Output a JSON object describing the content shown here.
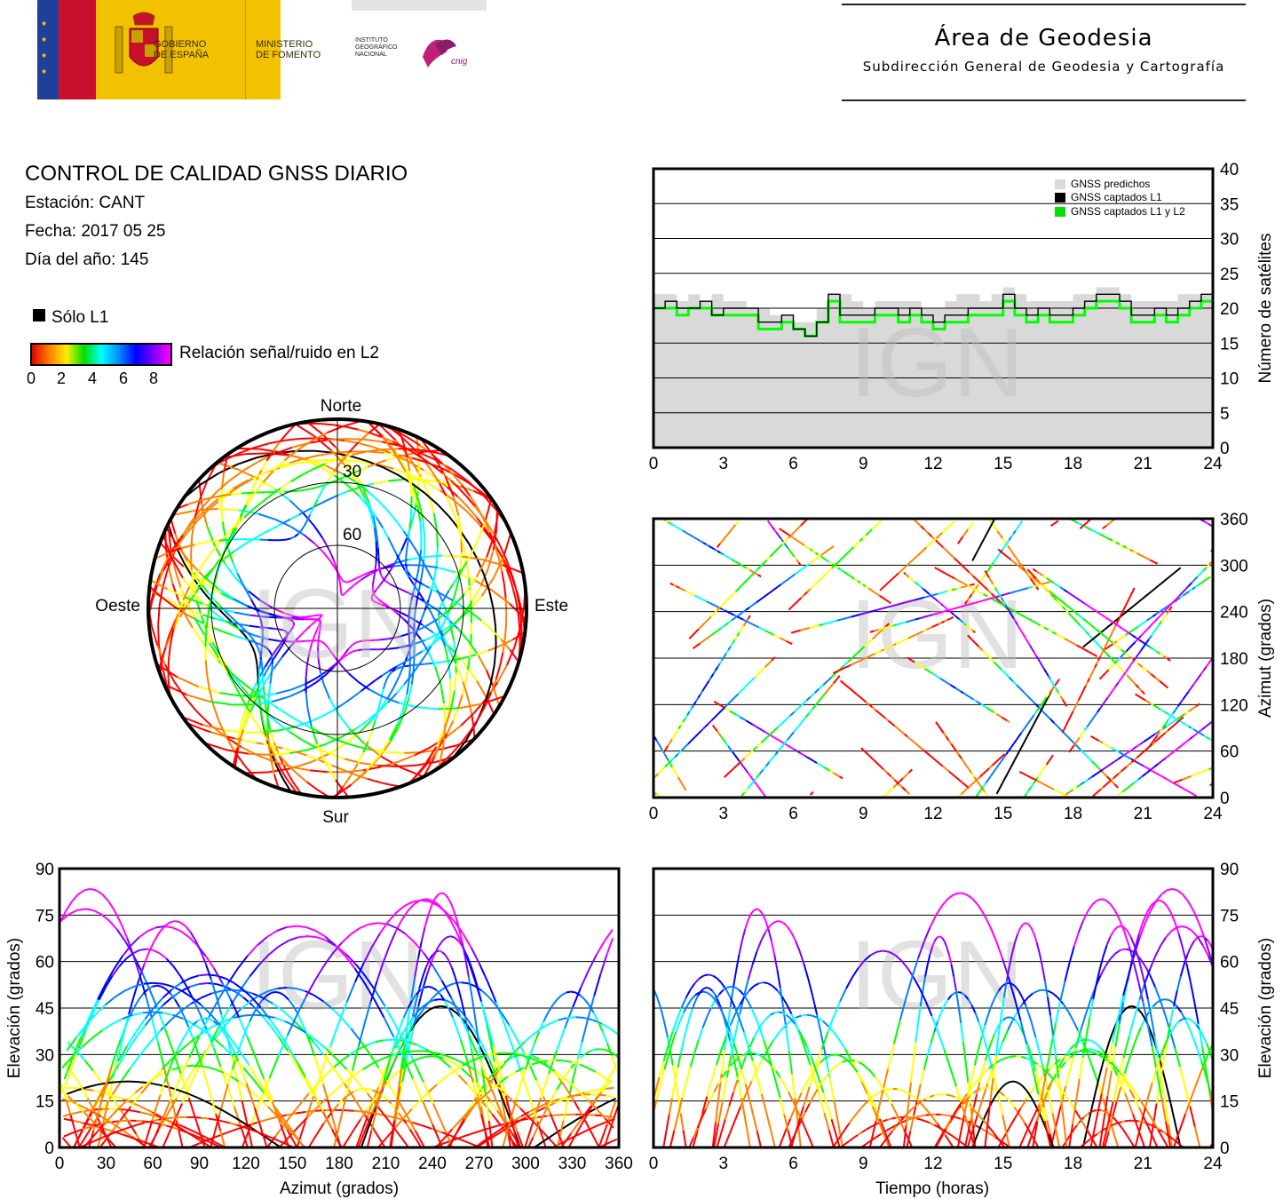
{
  "header": {
    "gov_line1": "GOBIERNO",
    "gov_line2": "DE ESPAÑA",
    "min_line1": "MINISTERIO",
    "min_line2": "DE FOMENTO",
    "ign_line1": "INSTITUTO",
    "ign_line2": "GEOGRÁFICO",
    "ign_line3": "NACIONAL",
    "cnig": "cnig",
    "area_title": "Área de Geodesia",
    "area_subtitle": "Subdirección General de Geodesia y Cartografía"
  },
  "info": {
    "title": "CONTROL DE CALIDAD GNSS DIARIO",
    "station": "Estación: CANT",
    "date": "Fecha: 2017 05 25",
    "doy": "Día del año: 145"
  },
  "legend": {
    "l1_only": "Sólo L1",
    "snr_label": "Relación señal/ruido en L2",
    "snr_ticks": [
      "0",
      "2",
      "4",
      "6",
      "8"
    ],
    "colors": {
      "l1_only": "#000000",
      "snr_scale": [
        "#ff0000",
        "#ff8000",
        "#ffff00",
        "#00ff00",
        "#00ffff",
        "#0080ff",
        "#0000ff",
        "#8000ff",
        "#ff00ff"
      ]
    }
  },
  "watermark": "IGN",
  "polar": {
    "north": "Norte",
    "south": "Sur",
    "east": "Este",
    "west": "Oeste",
    "ring30": "30",
    "ring60": "60"
  },
  "chart_data": [
    {
      "id": "satellites",
      "type": "line",
      "xlim": [
        0,
        24
      ],
      "ylim": [
        0,
        40
      ],
      "xticks": [
        "0",
        "3",
        "6",
        "9",
        "12",
        "15",
        "18",
        "21",
        "24"
      ],
      "yticks": [
        "0",
        "5",
        "10",
        "15",
        "20",
        "25",
        "30",
        "35",
        "40"
      ],
      "ylabel": "Número de satélites",
      "legend": [
        "GNSS predichos",
        "GNSS captados L1",
        "GNSS captados L1 y L2"
      ],
      "colors": {
        "predicted": "#d9d9d9",
        "l1": "#000000",
        "l1l2": "#00ff00"
      },
      "series": [
        {
          "name": "GNSS predichos",
          "x": [
            0,
            0.5,
            1,
            1.5,
            2,
            2.5,
            3,
            3.5,
            4,
            4.5,
            5,
            5.5,
            6,
            6.5,
            7,
            7.5,
            8,
            8.5,
            9,
            9.5,
            10,
            10.5,
            11,
            11.5,
            12,
            12.5,
            13,
            13.5,
            14,
            14.5,
            15,
            15.5,
            16,
            16.5,
            17,
            17.5,
            18,
            18.5,
            19,
            19.5,
            20,
            20.5,
            21,
            21.5,
            22,
            22.5,
            23,
            23.5,
            24
          ],
          "values": [
            22,
            22,
            21,
            22,
            21,
            22,
            21,
            21,
            20,
            20,
            19,
            19,
            18,
            18,
            20,
            22,
            22,
            21,
            20,
            21,
            21,
            21,
            21,
            20,
            20,
            21,
            22,
            22,
            21,
            22,
            23,
            22,
            21,
            21,
            21,
            21,
            22,
            22,
            23,
            23,
            22,
            21,
            21,
            21,
            21,
            22,
            22,
            22,
            21
          ]
        },
        {
          "name": "GNSS captados L1",
          "x": [
            0,
            0.5,
            1,
            1.5,
            2,
            2.5,
            3,
            3.5,
            4,
            4.5,
            5,
            5.5,
            6,
            6.5,
            7,
            7.5,
            8,
            8.5,
            9,
            9.5,
            10,
            10.5,
            11,
            11.5,
            12,
            12.5,
            13,
            13.5,
            14,
            14.5,
            15,
            15.5,
            16,
            16.5,
            17,
            17.5,
            18,
            18.5,
            19,
            19.5,
            20,
            20.5,
            21,
            21.5,
            22,
            22.5,
            23,
            23.5,
            24
          ],
          "values": [
            20,
            21,
            20,
            20,
            21,
            19,
            20,
            20,
            20,
            18,
            18,
            19,
            17,
            16,
            18,
            22,
            19,
            19,
            19,
            20,
            20,
            19,
            20,
            19,
            18,
            19,
            19,
            20,
            20,
            20,
            22,
            20,
            19,
            20,
            19,
            19,
            20,
            21,
            22,
            22,
            21,
            19,
            19,
            20,
            19,
            20,
            21,
            22,
            20
          ]
        },
        {
          "name": "GNSS captados L1 y L2",
          "x": [
            0,
            0.5,
            1,
            1.5,
            2,
            2.5,
            3,
            3.5,
            4,
            4.5,
            5,
            5.5,
            6,
            6.5,
            7,
            7.5,
            8,
            8.5,
            9,
            9.5,
            10,
            10.5,
            11,
            11.5,
            12,
            12.5,
            13,
            13.5,
            14,
            14.5,
            15,
            15.5,
            16,
            16.5,
            17,
            17.5,
            18,
            18.5,
            19,
            19.5,
            20,
            20.5,
            21,
            21.5,
            22,
            22.5,
            23,
            23.5,
            24
          ],
          "values": [
            20,
            20,
            19,
            20,
            20,
            19,
            19,
            19,
            19,
            17,
            17,
            18,
            17,
            16,
            18,
            21,
            18,
            18,
            18,
            19,
            19,
            18,
            19,
            18,
            17,
            18,
            18,
            19,
            19,
            19,
            21,
            19,
            18,
            19,
            18,
            18,
            19,
            20,
            21,
            21,
            20,
            18,
            18,
            19,
            18,
            19,
            20,
            21,
            19
          ]
        }
      ]
    },
    {
      "id": "azimuth-time",
      "type": "scatter",
      "xlim": [
        0,
        24
      ],
      "ylim": [
        0,
        360
      ],
      "xticks": [
        "0",
        "3",
        "6",
        "9",
        "12",
        "15",
        "18",
        "21",
        "24"
      ],
      "yticks": [
        "0",
        "60",
        "120",
        "180",
        "240",
        "300",
        "360"
      ],
      "ylabel": "Azimut (grados)"
    },
    {
      "id": "elevation-azimuth",
      "type": "scatter",
      "xlim": [
        0,
        360
      ],
      "ylim": [
        0,
        90
      ],
      "xticks": [
        "0",
        "30",
        "60",
        "90",
        "120",
        "150",
        "180",
        "210",
        "240",
        "270",
        "300",
        "330",
        "360"
      ],
      "yticks": [
        "0",
        "15",
        "30",
        "45",
        "60",
        "75",
        "90"
      ],
      "xlabel": "Azimut (grados)",
      "ylabel": "Elevación (grados)"
    },
    {
      "id": "elevation-time",
      "type": "scatter",
      "xlim": [
        0,
        24
      ],
      "ylim": [
        0,
        90
      ],
      "xticks": [
        "0",
        "3",
        "6",
        "9",
        "12",
        "15",
        "18",
        "21",
        "24"
      ],
      "yticks": [
        "0",
        "15",
        "30",
        "45",
        "60",
        "75",
        "90"
      ],
      "xlabel": "Tiempo (horas)",
      "ylabel": "Elevación (grados)"
    }
  ]
}
